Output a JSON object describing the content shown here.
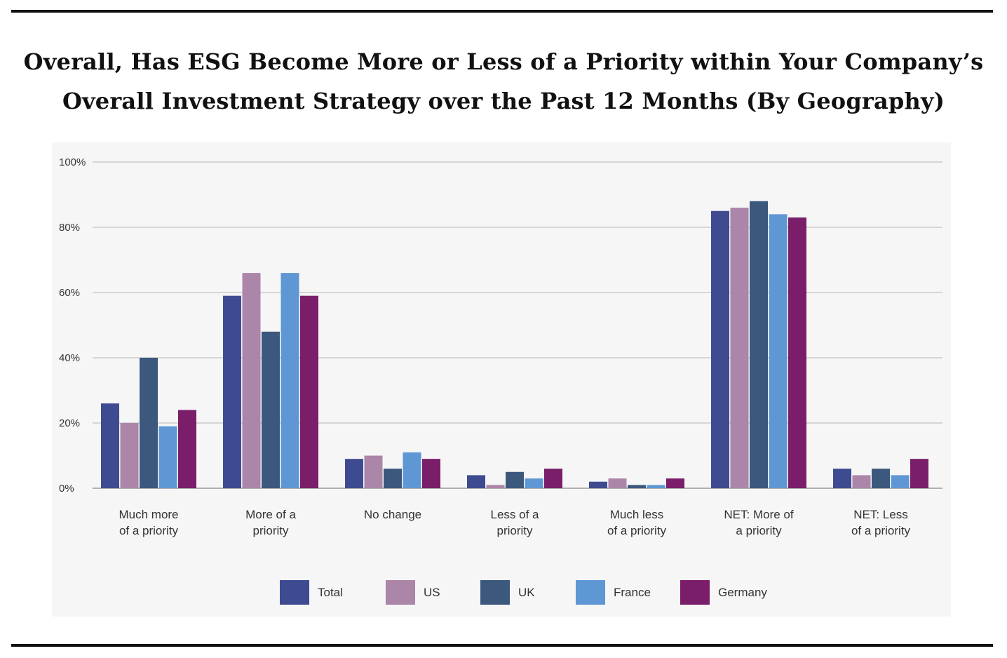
{
  "title_lines": [
    "Overall, Has ESG Become More or Less of a Priority within Your Company’s",
    "Overall Investment Strategy over the Past 12 Months (By Geography)"
  ],
  "chart_data": {
    "type": "bar",
    "title": "Overall, Has ESG Become More or Less of a Priority within Your Company’s Overall Investment Strategy over the Past 12 Months (By Geography)",
    "categories": [
      [
        "Much more",
        "of a priority"
      ],
      [
        "More of a",
        "priority"
      ],
      [
        "No change"
      ],
      [
        "Less of a",
        "priority"
      ],
      [
        "Much less",
        "of a priority"
      ],
      [
        "NET: More of",
        "a priority"
      ],
      [
        "NET: Less",
        "of a priority"
      ]
    ],
    "series": [
      {
        "name": "Total",
        "color": "#3f4b91",
        "values": [
          26,
          59,
          9,
          4,
          2,
          85,
          6
        ]
      },
      {
        "name": "US",
        "color": "#ab86a9",
        "values": [
          20,
          66,
          10,
          1,
          3,
          86,
          4
        ]
      },
      {
        "name": "UK",
        "color": "#3c587c",
        "values": [
          40,
          48,
          6,
          5,
          1,
          88,
          6
        ]
      },
      {
        "name": "France",
        "color": "#5f97d4",
        "values": [
          19,
          66,
          11,
          3,
          1,
          84,
          4
        ]
      },
      {
        "name": "Germany",
        "color": "#7a1e6a",
        "values": [
          24,
          59,
          9,
          6,
          3,
          83,
          9
        ]
      }
    ],
    "yticks": [
      "0%",
      "20%",
      "40%",
      "60%",
      "80%",
      "100%"
    ],
    "ylim": [
      0,
      100
    ],
    "grid": true,
    "legend_position": "bottom"
  }
}
